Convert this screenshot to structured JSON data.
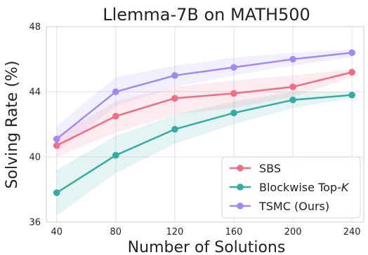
{
  "chart_data": {
    "type": "line",
    "title": "Llemma-7B on MATH500",
    "xlabel": "Number of Solutions",
    "ylabel": "Solving Rate (%)",
    "x": [
      40,
      80,
      120,
      160,
      200,
      240
    ],
    "xticks": [
      "40",
      "80",
      "120",
      "160",
      "200",
      "240"
    ],
    "yticks": [
      "36",
      "40",
      "44",
      "48"
    ],
    "ylim": [
      36,
      48
    ],
    "xlim": [
      33,
      248
    ],
    "grid": true,
    "legend_position": "bottom-right",
    "series": [
      {
        "name": "SBS",
        "color": "#f06d86",
        "values": [
          40.7,
          42.5,
          43.6,
          43.9,
          44.3,
          45.2
        ],
        "band_low": [
          40.0,
          41.5,
          42.6,
          43.0,
          43.7,
          44.9
        ],
        "band_high": [
          41.3,
          43.4,
          44.3,
          44.7,
          45.0,
          45.4
        ]
      },
      {
        "name": "Blockwise Top-K",
        "color": "#36aba4",
        "values": [
          37.8,
          40.1,
          41.7,
          42.7,
          43.5,
          43.8
        ],
        "band_low": [
          36.4,
          39.0,
          40.8,
          42.0,
          43.0,
          43.6
        ],
        "band_high": [
          39.2,
          41.3,
          42.6,
          43.4,
          44.0,
          44.0
        ]
      },
      {
        "name": "TSMC (Ours)",
        "color": "#a18af2",
        "values": [
          41.1,
          44.0,
          45.0,
          45.5,
          46.0,
          46.4
        ],
        "band_low": [
          40.3,
          43.1,
          44.3,
          45.0,
          45.6,
          46.1
        ],
        "band_high": [
          41.9,
          44.9,
          45.6,
          46.1,
          46.4,
          46.6
        ]
      }
    ]
  }
}
